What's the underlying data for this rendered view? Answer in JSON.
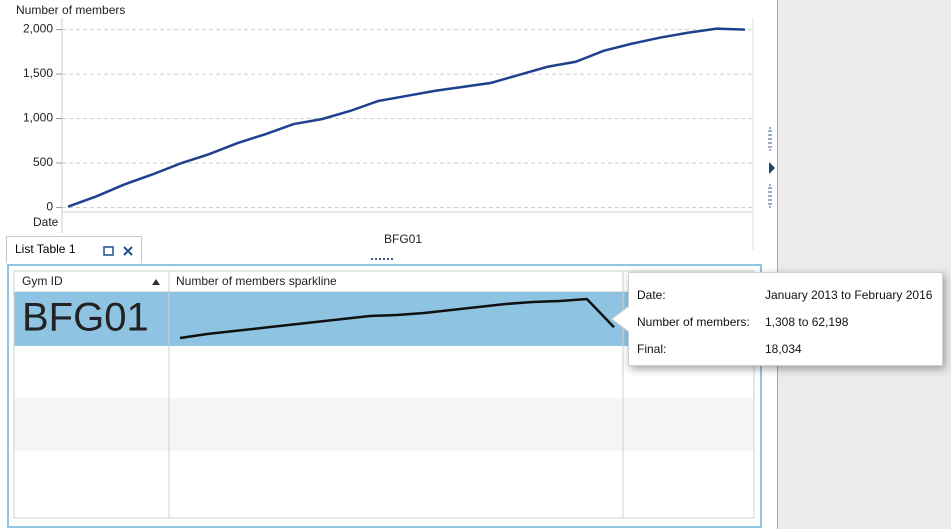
{
  "chart_data": {
    "type": "line",
    "ylabel": "Number of members",
    "xlabel": "Date",
    "group_label": "BFG01",
    "values": [
      10,
      125,
      260,
      373,
      497,
      600,
      723,
      825,
      938,
      994,
      1085,
      1198,
      1254,
      1311,
      1356,
      1401,
      1492,
      1582,
      1638,
      1763,
      1842,
      1910,
      1966,
      2011,
      2000
    ],
    "color": "#1f3f8f",
    "ylim": [
      -50,
      2130
    ],
    "yticks": [
      0,
      500,
      {
        "value": 1000,
        "label": "1,000"
      },
      {
        "value": 1500,
        "label": "1,500"
      },
      {
        "value": 2000,
        "label": "2,000"
      }
    ],
    "grid": true
  },
  "tab": {
    "title": "List Table 1"
  },
  "table": {
    "columns": [
      "Gym ID",
      "Number of members sparkline"
    ],
    "rows": [
      {
        "id": "BFG01",
        "sparkline": [
          1308,
          7550,
          12230,
          16900,
          21600,
          26300,
          31000,
          35700,
          37200,
          40300,
          45000,
          49700,
          54400,
          57500,
          59000,
          62198,
          18034
        ]
      }
    ]
  },
  "tooltip": {
    "rows": [
      [
        "Date:",
        "January 2013 to February 2016"
      ],
      [
        "Number of members:",
        "1,308 to 62,198"
      ],
      [
        "Final:",
        "18,034"
      ]
    ]
  }
}
